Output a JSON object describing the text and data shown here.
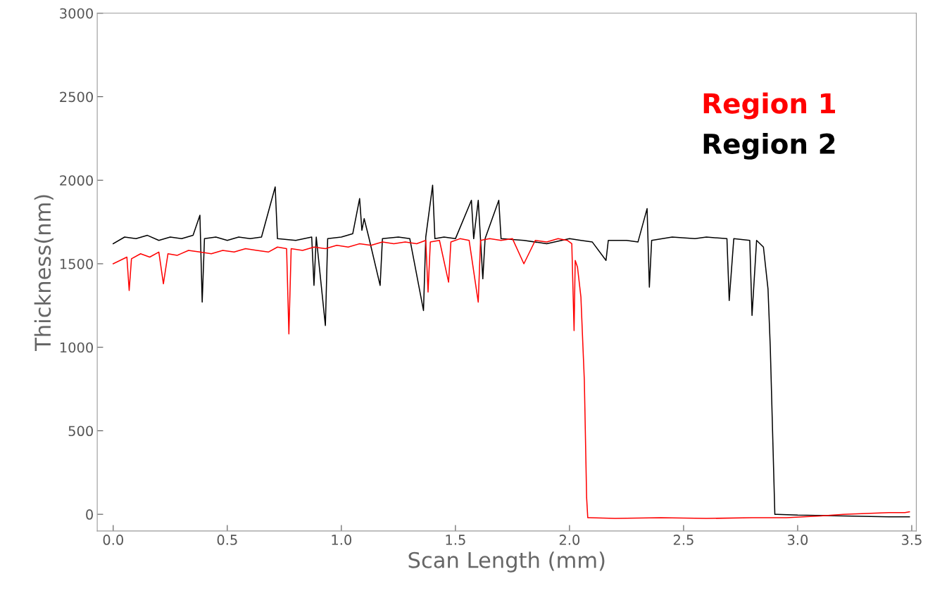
{
  "chart_data": {
    "type": "line",
    "xlabel": "Scan Length (mm)",
    "ylabel": "Thickness(nm)",
    "xlim": [
      -0.07,
      3.52
    ],
    "ylim": [
      -100,
      3000
    ],
    "xticks": [
      {
        "value": 0,
        "label": "0.0"
      },
      0.5,
      {
        "value": 1,
        "label": "1.0"
      },
      1.5,
      {
        "value": 2,
        "label": "2.0"
      },
      2.5,
      {
        "value": 3,
        "label": "3.0"
      },
      3.5
    ],
    "yticks": [
      0,
      500,
      1000,
      1500,
      2000,
      2500,
      3000
    ],
    "grid": false,
    "legend": "top right",
    "marker": "none",
    "line_style": "solid",
    "series": [
      {
        "name": "Region 1",
        "color": "#ff0000",
        "x": [
          0.0,
          0.03,
          0.06,
          0.07,
          0.08,
          0.12,
          0.16,
          0.2,
          0.22,
          0.24,
          0.28,
          0.33,
          0.38,
          0.43,
          0.48,
          0.53,
          0.58,
          0.63,
          0.68,
          0.72,
          0.76,
          0.77,
          0.78,
          0.83,
          0.88,
          0.93,
          0.98,
          1.03,
          1.08,
          1.13,
          1.18,
          1.23,
          1.28,
          1.33,
          1.37,
          1.38,
          1.39,
          1.43,
          1.47,
          1.48,
          1.52,
          1.56,
          1.6,
          1.61,
          1.65,
          1.7,
          1.75,
          1.8,
          1.85,
          1.9,
          1.95,
          1.99,
          2.01,
          2.02,
          2.025,
          2.035,
          2.05,
          2.065,
          2.075,
          2.08,
          2.09,
          2.2,
          2.4,
          2.6,
          2.8,
          2.95,
          3.1,
          3.2,
          3.3,
          3.4,
          3.47,
          3.49
        ],
        "values": [
          1500,
          1520,
          1540,
          1340,
          1530,
          1560,
          1540,
          1570,
          1380,
          1560,
          1550,
          1580,
          1570,
          1560,
          1580,
          1570,
          1590,
          1580,
          1570,
          1600,
          1590,
          1080,
          1590,
          1580,
          1600,
          1590,
          1610,
          1600,
          1620,
          1610,
          1630,
          1620,
          1630,
          1620,
          1640,
          1330,
          1630,
          1640,
          1390,
          1630,
          1650,
          1640,
          1270,
          1640,
          1650,
          1640,
          1650,
          1500,
          1640,
          1630,
          1650,
          1640,
          1620,
          1100,
          1520,
          1480,
          1300,
          800,
          100,
          -20,
          -20,
          -25,
          -20,
          -25,
          -20,
          -20,
          -10,
          0,
          5,
          10,
          10,
          15
        ]
      },
      {
        "name": "Region 2",
        "color": "#000000",
        "x": [
          0.0,
          0.05,
          0.1,
          0.15,
          0.2,
          0.25,
          0.3,
          0.35,
          0.38,
          0.39,
          0.4,
          0.45,
          0.5,
          0.55,
          0.6,
          0.65,
          0.71,
          0.72,
          0.8,
          0.87,
          0.88,
          0.89,
          0.93,
          0.94,
          1.0,
          1.05,
          1.08,
          1.09,
          1.1,
          1.12,
          1.17,
          1.18,
          1.25,
          1.3,
          1.36,
          1.37,
          1.4,
          1.41,
          1.45,
          1.5,
          1.57,
          1.58,
          1.6,
          1.62,
          1.63,
          1.69,
          1.7,
          1.8,
          1.9,
          2.0,
          2.05,
          2.1,
          2.16,
          2.17,
          2.25,
          2.3,
          2.34,
          2.35,
          2.36,
          2.45,
          2.55,
          2.6,
          2.69,
          2.7,
          2.72,
          2.79,
          2.8,
          2.82,
          2.85,
          2.87,
          2.88,
          2.89,
          2.9,
          2.91,
          3.0,
          3.2,
          3.4,
          3.49
        ],
        "values": [
          1620,
          1660,
          1650,
          1670,
          1640,
          1660,
          1650,
          1670,
          1790,
          1270,
          1650,
          1660,
          1640,
          1660,
          1650,
          1660,
          1960,
          1650,
          1640,
          1660,
          1370,
          1660,
          1130,
          1650,
          1660,
          1680,
          1890,
          1700,
          1770,
          1660,
          1370,
          1650,
          1660,
          1650,
          1220,
          1660,
          1970,
          1650,
          1660,
          1650,
          1880,
          1650,
          1880,
          1410,
          1650,
          1880,
          1650,
          1640,
          1620,
          1650,
          1640,
          1630,
          1520,
          1640,
          1640,
          1630,
          1830,
          1360,
          1640,
          1660,
          1650,
          1660,
          1650,
          1280,
          1650,
          1640,
          1190,
          1640,
          1600,
          1350,
          1000,
          500,
          0,
          0,
          -5,
          -10,
          -15,
          -15
        ]
      }
    ]
  }
}
